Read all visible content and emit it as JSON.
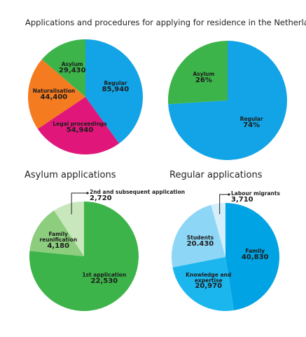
{
  "title": "Applications and procedures for applying for residence in the Netherlands",
  "chart_data": [
    {
      "type": "pie",
      "categories": [
        "Regular",
        "Legal proceedings",
        "Naturalisation",
        "Asylum"
      ],
      "values": [
        85940,
        54940,
        44400,
        29430
      ],
      "value_labels": [
        "85,940",
        "54,940",
        "44,400",
        "29,430"
      ],
      "colors": [
        "#12a4e6",
        "#e0167a",
        "#f47b20",
        "#3db44a"
      ]
    },
    {
      "type": "pie",
      "categories": [
        "Regular",
        "Asylum"
      ],
      "values": [
        74,
        26
      ],
      "value_labels": [
        "74%",
        "26%"
      ],
      "colors": [
        "#12a4e6",
        "#3db44a"
      ]
    },
    {
      "type": "pie",
      "title": "Asylum applications",
      "categories": [
        "1st application",
        "Family reunification",
        "2nd and subsequent application"
      ],
      "values": [
        22530,
        4180,
        2720
      ],
      "value_labels": [
        "22,530",
        "4,180",
        "2,720"
      ],
      "colors": [
        "#3db44a",
        "#8dcd7e",
        "#c9e7bd"
      ]
    },
    {
      "type": "pie",
      "title": "Regular applications",
      "categories": [
        "Family",
        "Knowledge and expertise",
        "Students",
        "Labour migrants"
      ],
      "values": [
        40830,
        20970,
        20430,
        3710
      ],
      "value_labels": [
        "40,830",
        "20,970",
        "20.430",
        "3,710"
      ],
      "colors": [
        "#00a3e3",
        "#1cb6ee",
        "#8ed6f6",
        "#d4eefb"
      ]
    }
  ]
}
